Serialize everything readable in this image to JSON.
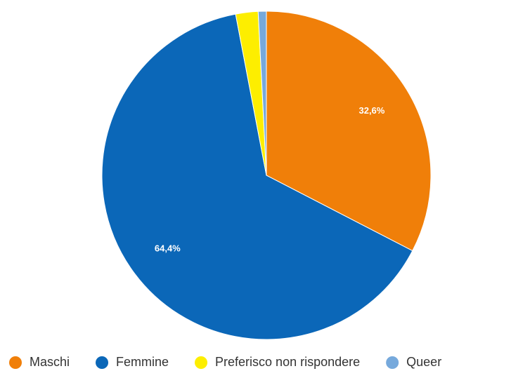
{
  "chart_data": {
    "type": "pie",
    "categories": [
      "Maschi",
      "Femmine",
      "Preferisco non rispondere",
      "Queer"
    ],
    "values": [
      32.6,
      64.4,
      2.2,
      0.8
    ],
    "value_labels": [
      "32,6%",
      "64,4%",
      null,
      null
    ],
    "colors": [
      "#f07f09",
      "#0b67b8",
      "#fdee00",
      "#76a9dc"
    ],
    "legend": "bottom"
  }
}
